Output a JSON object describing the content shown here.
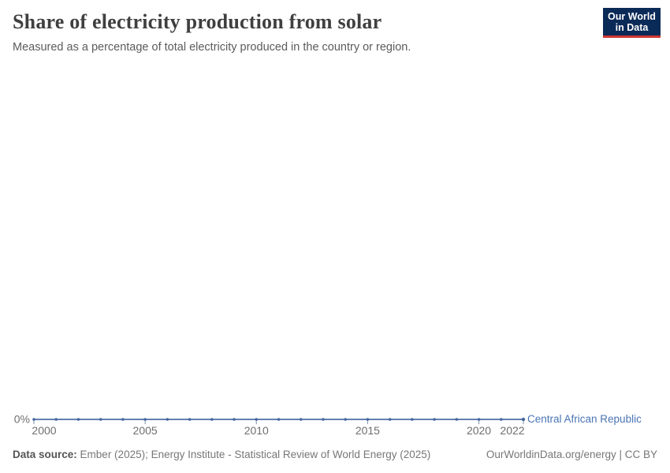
{
  "header": {
    "title": "Share of electricity production from solar",
    "subtitle": "Measured as a percentage of total electricity produced in the country or region.",
    "logo_line1": "Our World",
    "logo_line2": "in Data"
  },
  "chart_data": {
    "type": "line",
    "title": "Share of electricity production from solar",
    "subtitle": "Measured as a percentage of total electricity produced in the country or region.",
    "unit": "%",
    "x": [
      2000,
      2001,
      2002,
      2003,
      2004,
      2005,
      2006,
      2007,
      2008,
      2009,
      2010,
      2011,
      2012,
      2013,
      2014,
      2015,
      2016,
      2017,
      2018,
      2019,
      2020,
      2021,
      2022
    ],
    "series": [
      {
        "name": "Central African Republic",
        "color": "#4c6ea4",
        "values": [
          0,
          0,
          0,
          0,
          0,
          0,
          0,
          0,
          0,
          0,
          0,
          0,
          0,
          0,
          0,
          0,
          0,
          0,
          0,
          0,
          0,
          0,
          0
        ]
      }
    ],
    "x_ticks": [
      2000,
      2005,
      2010,
      2015,
      2020,
      2022
    ],
    "x_tick_labels": [
      "2000",
      "2005",
      "2010",
      "2015",
      "2020",
      "2022"
    ],
    "y_zero_label": "0%",
    "ylim": [
      0,
      null
    ],
    "grid": false,
    "legend_position": "end-of-line",
    "entity_label": "Central African Republic"
  },
  "footer": {
    "data_source_label": "Data source:",
    "data_source_text": "Ember (2025); Energy Institute - Statistical Review of World Energy (2025)",
    "right_text": "OurWorldinData.org/energy | CC BY"
  },
  "colors": {
    "line": "#4c6ea4",
    "marker": "#44669e",
    "axis_tick": "#95a2ba",
    "entity_label": "#4a74b4",
    "logo_bg": "#0a2a57",
    "logo_red": "#cd3731"
  }
}
